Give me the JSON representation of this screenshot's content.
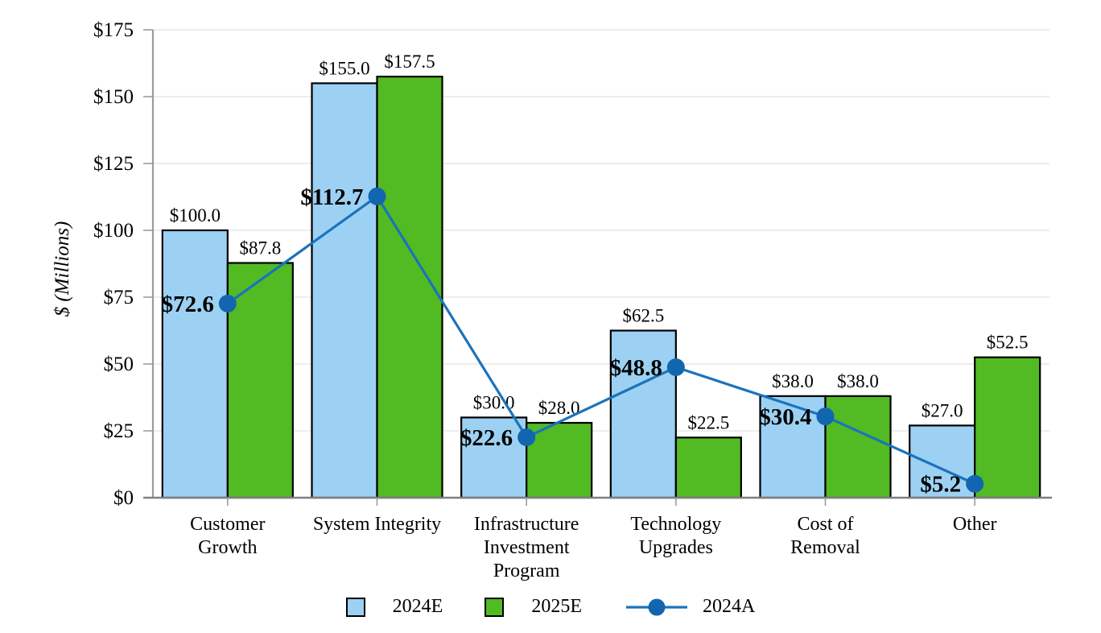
{
  "chart_data": {
    "type": "combo_bar_line",
    "title": "",
    "ylabel": "$ (Millions)",
    "ylim": [
      0,
      175
    ],
    "ytick_step": 25,
    "ytick_labels": [
      "$0",
      "$25",
      "$50",
      "$75",
      "$100",
      "$125",
      "$150",
      "$175"
    ],
    "categories": [
      "Customer Growth",
      "System Integrity",
      "Infrastructure Investment Program",
      "Technology Upgrades",
      "Cost of Removal",
      "Other"
    ],
    "category_label_lines": [
      [
        "Customer",
        "Growth"
      ],
      [
        "System Integrity"
      ],
      [
        "Infrastructure",
        "Investment",
        "Program"
      ],
      [
        "Technology",
        "Upgrades"
      ],
      [
        "Cost of",
        "Removal"
      ],
      [
        "Other"
      ]
    ],
    "series": [
      {
        "name": "2024E",
        "type": "bar",
        "color": "#9DD1F3",
        "values": [
          100.0,
          155.0,
          30.0,
          62.5,
          38.0,
          27.0
        ],
        "data_labels": [
          "$100.0",
          "$155.0",
          "$30.0",
          "$62.5",
          "$38.0",
          "$27.0"
        ]
      },
      {
        "name": "2025E",
        "type": "bar",
        "color": "#52BA23",
        "values": [
          87.8,
          157.5,
          28.0,
          22.5,
          38.0,
          52.5
        ],
        "data_labels": [
          "$87.8",
          "$157.5",
          "$28.0",
          "$22.5",
          "$38.0",
          "$52.5"
        ]
      },
      {
        "name": "2024A",
        "type": "line",
        "color": "#1B73BB",
        "marker_color": "#1266B0",
        "values": [
          72.6,
          112.7,
          22.6,
          48.8,
          30.4,
          5.2
        ],
        "data_labels": [
          "$72.6",
          "$112.7",
          "$22.6",
          "$48.8",
          "$30.4",
          "$5.2"
        ]
      }
    ],
    "grid": true,
    "legend_position": "bottom",
    "bar_border_color": "#000000"
  },
  "style_colors": {
    "gridline": "#E7E7E7",
    "y_axis": "#9C9C9C",
    "x_axis": "#7F7F7F",
    "tick": "#9C9C9C"
  }
}
